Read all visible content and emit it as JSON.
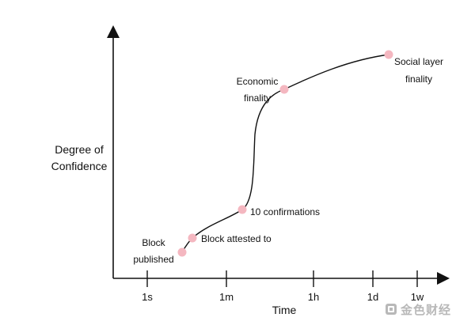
{
  "chart_data": {
    "type": "line",
    "title": "",
    "xlabel": "Time",
    "ylabel_lines": [
      "Degree of",
      "Confidence"
    ],
    "x_ticks": [
      "1s",
      "1m",
      "1h",
      "1d",
      "1w"
    ],
    "x_scale": "log",
    "points": [
      {
        "label_lines": [
          "Block",
          "published"
        ],
        "x": "~5s",
        "y": 0.1
      },
      {
        "label_lines": [
          "Block attested to"
        ],
        "x": "~13s",
        "y": 0.18
      },
      {
        "label_lines": [
          "10 confirmations"
        ],
        "x": "~2.5m",
        "y": 0.29
      },
      {
        "label_lines": [
          "Economic",
          "finality"
        ],
        "x": "~15m",
        "y": 0.8
      },
      {
        "label_lines": [
          "Social layer",
          "finality"
        ],
        "x": "~1.2d",
        "y": 0.97
      }
    ],
    "grid": false,
    "legend": "none",
    "colors": {
      "curve": "#111111",
      "point": "#f4b7c0",
      "axis": "#111111"
    }
  },
  "watermark": {
    "text": "金色财经",
    "icon": "jinse-logo-icon",
    "color": "#b8b8b8"
  }
}
